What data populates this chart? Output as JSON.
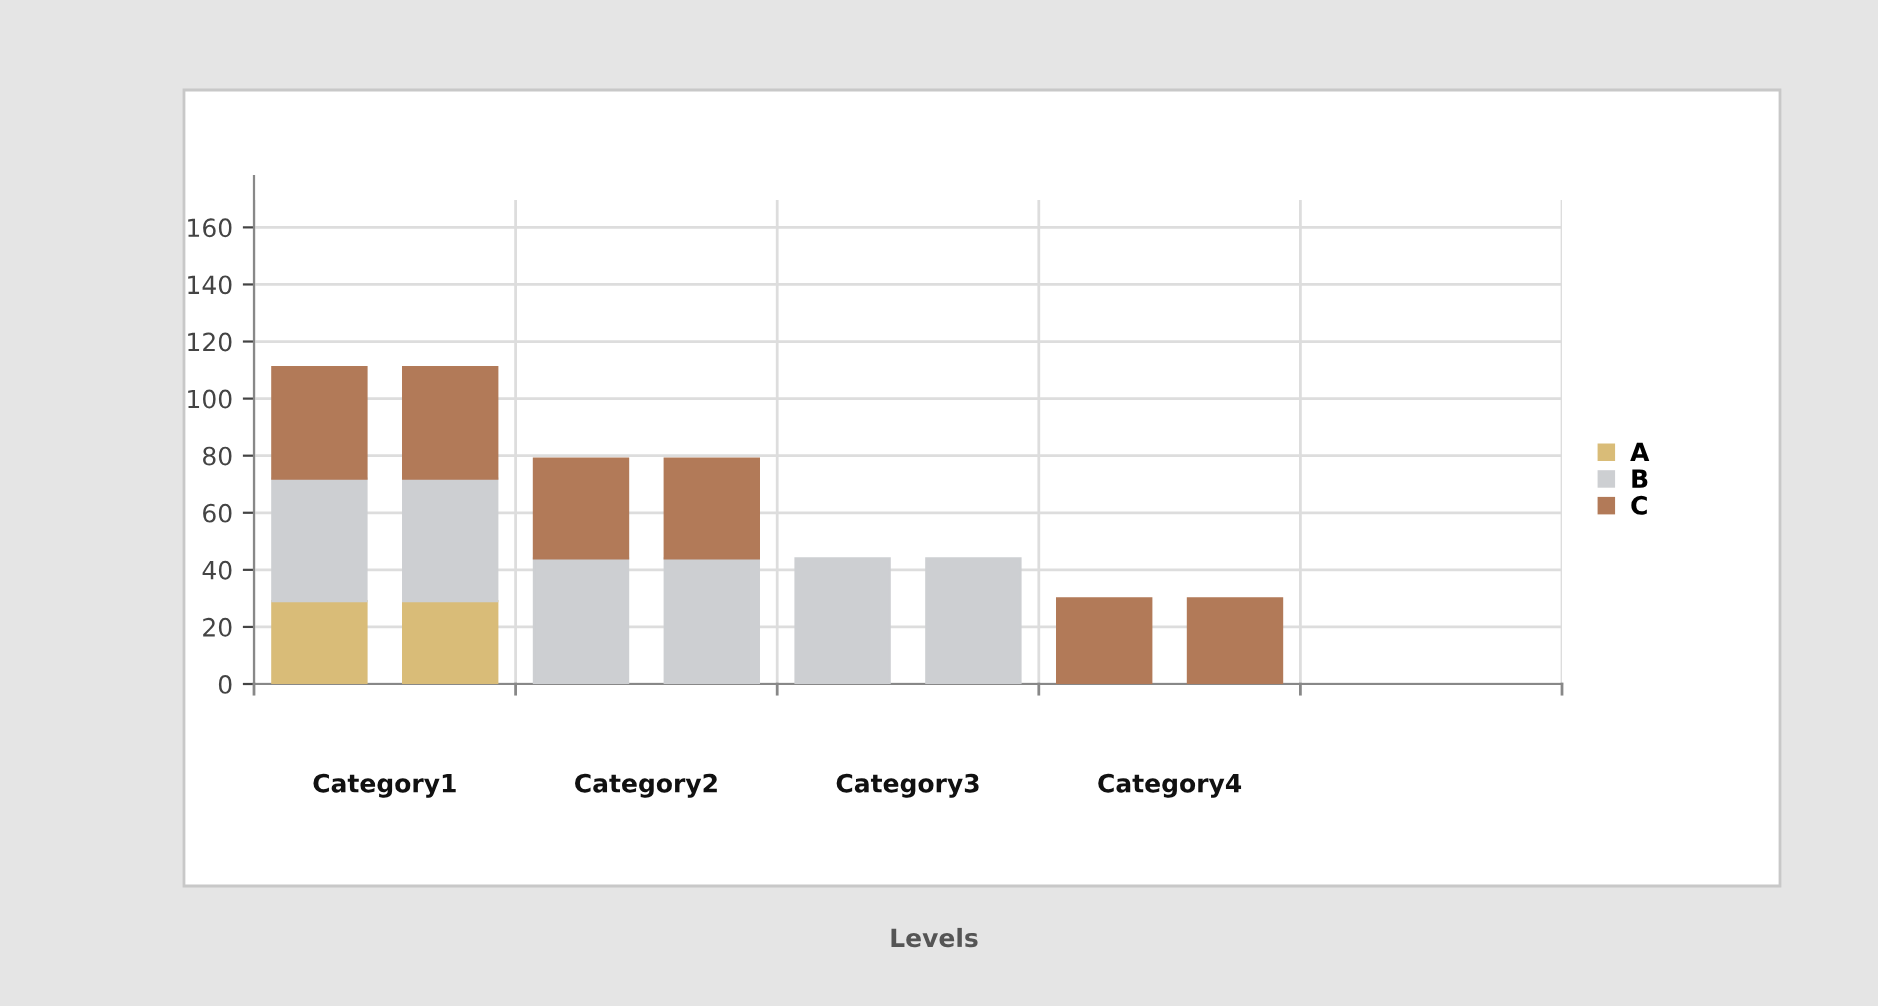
{
  "chart_data": {
    "type": "bar",
    "stacked": true,
    "annotations": [
      "Levels"
    ],
    "categories": [
      "Category1",
      null,
      "Category2",
      null,
      "Category3",
      null,
      "Category4",
      null,
      null,
      null
    ],
    "series": [
      {
        "name": "A",
        "color": "#d9bc78",
        "values": [
          29,
          29,
          null,
          null,
          null,
          null,
          null,
          null,
          null,
          null
        ]
      },
      {
        "name": "B",
        "color": "#cdcfd2",
        "values": [
          43,
          43,
          44,
          44,
          44,
          44,
          null,
          null,
          null,
          null
        ]
      },
      {
        "name": "C",
        "color": "#b27a58",
        "values": [
          39,
          39,
          35,
          35,
          null,
          null,
          30,
          30,
          null,
          null
        ]
      }
    ],
    "ylim": [
      0,
      178
    ],
    "yticks": [
      0,
      20,
      40,
      60,
      80,
      100,
      120,
      140,
      160
    ],
    "grid": true,
    "legend": "right"
  }
}
